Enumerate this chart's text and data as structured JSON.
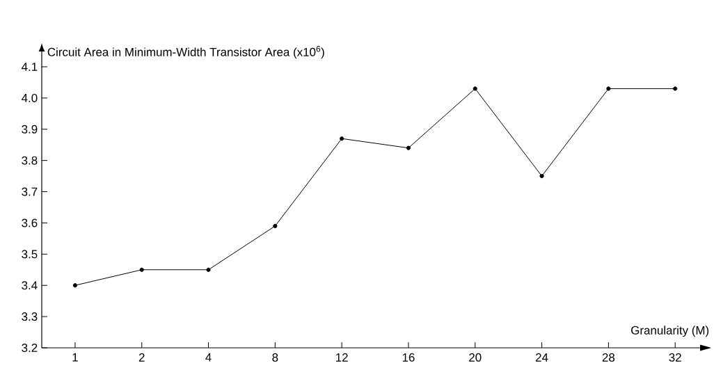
{
  "chart_data": {
    "type": "line",
    "ylabel": "Circuit Area in Minimum-Width Transistor Area (x10$^{6}$)",
    "xlabel": "Granularity (M)",
    "categories": [
      "1",
      "2",
      "4",
      "8",
      "12",
      "16",
      "20",
      "24",
      "28",
      "32"
    ],
    "series": [
      {
        "color": "#000000",
        "values": [
          3.4,
          3.45,
          3.45,
          3.59,
          3.87,
          3.84,
          4.03,
          3.75,
          4.03,
          4.03
        ]
      }
    ],
    "ylim": [
      3.2,
      4.1
    ],
    "yticks": [
      3.2,
      3.3,
      3.4,
      3.5,
      3.6,
      3.7,
      3.8,
      3.9,
      {
        "value": 4.0,
        "label": "4.0"
      },
      4.1
    ],
    "marker": "circle"
  }
}
